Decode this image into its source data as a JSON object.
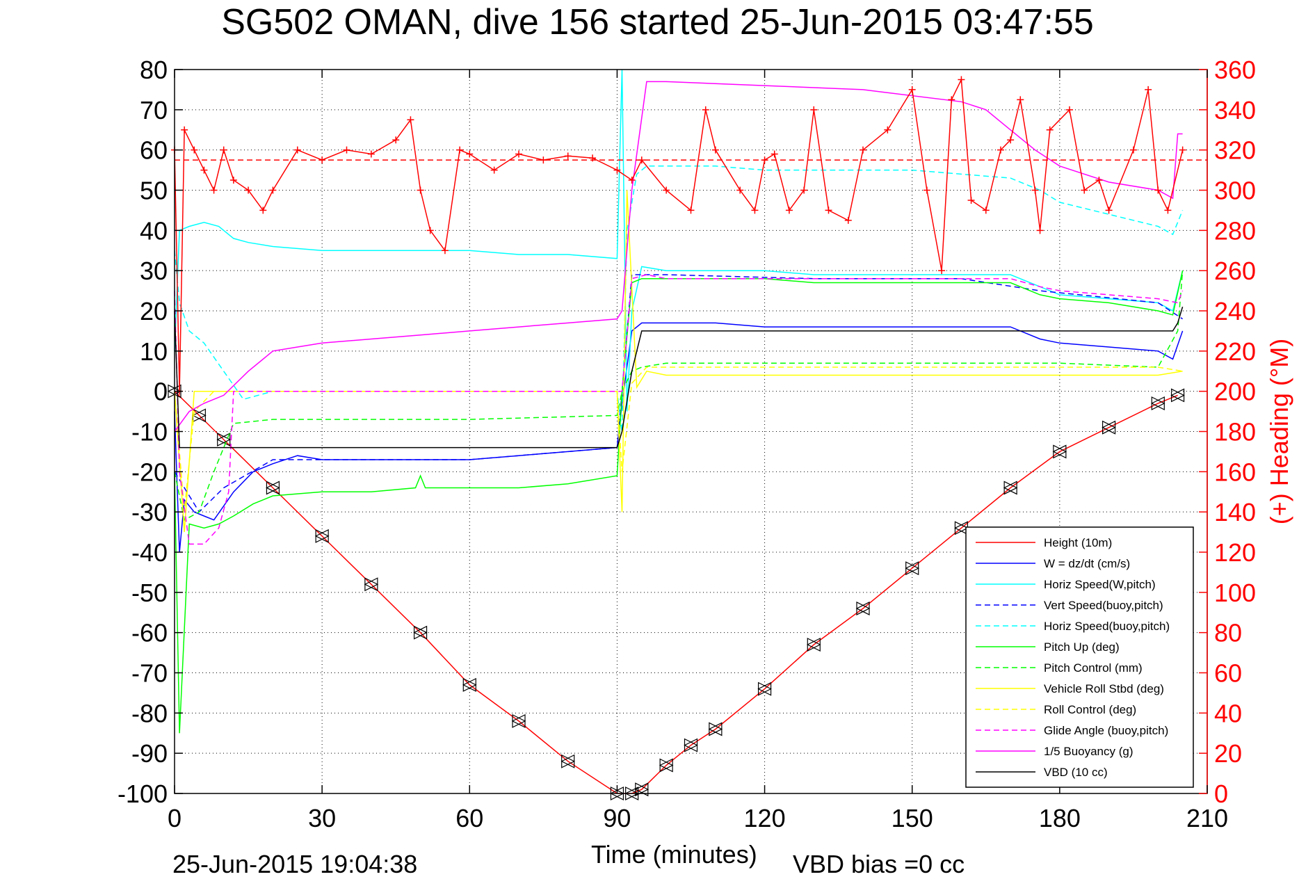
{
  "chart_data": {
    "type": "line",
    "title": "SG502 OMAN, dive 156 started 25-Jun-2015 03:47:55",
    "xlabel": "Time (minutes)",
    "ylabel_right": "(+) Heading (°M)",
    "xlim": [
      0,
      210
    ],
    "ylim_left": [
      -100,
      80
    ],
    "ylim_right": [
      0,
      360
    ],
    "xticks": [
      "0",
      "30",
      "60",
      "90",
      "120",
      "150",
      "180",
      "210"
    ],
    "yticks_left": [
      "80",
      "70",
      "60",
      "50",
      "40",
      "30",
      "20",
      "10",
      "0",
      "-10",
      "-20",
      "-30",
      "-40",
      "-50",
      "-60",
      "-70",
      "-80",
      "-90",
      "-100"
    ],
    "yticks_right": [
      "360",
      "340",
      "320",
      "300",
      "280",
      "260",
      "240",
      "220",
      "200",
      "180",
      "160",
      "140",
      "120",
      "100",
      "80",
      "60",
      "40",
      "20",
      "0"
    ],
    "grid": true,
    "legend_position": "bottom-right",
    "footer_left": "25-Jun-2015 19:04:38",
    "footer_right": "VBD bias =0 cc",
    "colors": {
      "red": "#ff0000",
      "blue": "#0000ff",
      "cyan": "#00ffff",
      "green": "#00ff00",
      "yellow": "#ffff00",
      "magenta": "#ff00ff",
      "black": "#000000"
    },
    "series": [
      {
        "name": "Height (10m)",
        "color": "#ff0000",
        "dash": false,
        "x": [
          0,
          5,
          10,
          20,
          30,
          40,
          50,
          60,
          70,
          80,
          90,
          93,
          95,
          100,
          105,
          110,
          120,
          130,
          140,
          150,
          160,
          170,
          180,
          190,
          200,
          204
        ],
        "y": [
          0,
          -6,
          -12,
          -24,
          -36,
          -48,
          -60,
          -73,
          -82,
          -92,
          -100,
          -100,
          -99,
          -93,
          -88,
          -84,
          -74,
          -63,
          -54,
          -44,
          -34,
          -24,
          -15,
          -9,
          -3,
          -1
        ]
      },
      {
        "name": "W = dz/dt (cm/s)",
        "color": "#0000ff",
        "dash": false,
        "x": [
          0,
          1,
          2,
          4,
          6,
          8,
          12,
          16,
          20,
          25,
          30,
          40,
          50,
          60,
          70,
          80,
          90,
          91,
          93,
          95,
          100,
          110,
          120,
          130,
          140,
          150,
          160,
          170,
          176,
          180,
          190,
          200,
          203,
          205
        ],
        "y": [
          -5,
          -40,
          -27,
          -30,
          -31,
          -32,
          -25,
          -20,
          -18,
          -16,
          -17,
          -17,
          -17,
          -17,
          -16,
          -15,
          -14,
          -3,
          15,
          17,
          17,
          17,
          16,
          16,
          16,
          16,
          16,
          16,
          13,
          12,
          11,
          10,
          8,
          15
        ]
      },
      {
        "name": "Horiz Speed(W,pitch)",
        "color": "#00ffff",
        "dash": false,
        "x": [
          0,
          1,
          3,
          6,
          9,
          12,
          15,
          20,
          30,
          40,
          50,
          60,
          70,
          80,
          90,
          91,
          92,
          93,
          95,
          100,
          110,
          120,
          130,
          140,
          150,
          160,
          170,
          176,
          180,
          190,
          200,
          203,
          205
        ],
        "y": [
          10,
          40,
          41,
          42,
          41,
          38,
          37,
          36,
          35,
          35,
          35,
          35,
          34,
          34,
          33,
          80,
          -5,
          20,
          31,
          30,
          30,
          30,
          29,
          29,
          29,
          29,
          29,
          26,
          24,
          23,
          22,
          20,
          30
        ]
      },
      {
        "name": "Vert Speed(buoy,pitch)",
        "color": "#0000ff",
        "dash": true,
        "x": [
          0,
          5,
          10,
          20,
          40,
          60,
          80,
          90,
          91,
          93,
          100,
          130,
          160,
          176,
          200,
          205
        ],
        "y": [
          -20,
          -30,
          -24,
          -17,
          -17,
          -17,
          -15,
          -14,
          0,
          29,
          29,
          28,
          28,
          25,
          22,
          18
        ]
      },
      {
        "name": "Horiz Speed(buoy,pitch)",
        "color": "#00ffff",
        "dash": true,
        "x": [
          0,
          1,
          3,
          6,
          10,
          14,
          20,
          30,
          60,
          90,
          91,
          92,
          94,
          96,
          100,
          110,
          120,
          130,
          140,
          150,
          160,
          170,
          176,
          180,
          190,
          200,
          203,
          205
        ],
        "y": [
          35,
          22,
          15,
          12,
          5,
          -2,
          0,
          0,
          0,
          0,
          -10,
          40,
          54,
          56,
          56,
          56,
          55,
          55,
          55,
          55,
          54,
          53,
          50,
          47,
          44,
          41,
          39,
          45
        ]
      },
      {
        "name": "Pitch Up (deg)",
        "color": "#00ff00",
        "dash": false,
        "x": [
          0,
          1,
          3,
          6,
          9,
          12,
          16,
          20,
          30,
          40,
          49,
          50,
          51,
          60,
          70,
          80,
          90,
          91,
          93,
          95,
          100,
          110,
          120,
          130,
          140,
          150,
          160,
          170,
          176,
          180,
          190,
          200,
          203,
          205
        ],
        "y": [
          -20,
          -85,
          -33,
          -34,
          -33,
          -31,
          -28,
          -26,
          -25,
          -25,
          -24,
          -21,
          -24,
          -24,
          -24,
          -23,
          -21,
          0,
          27,
          28,
          28,
          28,
          28,
          27,
          27,
          27,
          27,
          27,
          24,
          23,
          22,
          20,
          19,
          30
        ]
      },
      {
        "name": "Pitch Control (mm)",
        "color": "#00ff00",
        "dash": true,
        "x": [
          0,
          2,
          5,
          8,
          12,
          20,
          30,
          60,
          90,
          91,
          93,
          95,
          100,
          120,
          150,
          180,
          200,
          204,
          205
        ],
        "y": [
          -20,
          -32,
          -30,
          -20,
          -8,
          -7,
          -7,
          -7,
          -6,
          0,
          5,
          6,
          7,
          7,
          7,
          7,
          6,
          15,
          30
        ]
      },
      {
        "name": "Vehicle Roll Stbd (deg)",
        "color": "#ffff00",
        "dash": false,
        "x": [
          0,
          2,
          4,
          8,
          12,
          20,
          30,
          40,
          50,
          60,
          70,
          80,
          90,
          91,
          92,
          94,
          96,
          100,
          110,
          120,
          130,
          140,
          150,
          160,
          170,
          180,
          190,
          200,
          205
        ],
        "y": [
          0,
          -35,
          0,
          0,
          0,
          0,
          0,
          0,
          0,
          0,
          0,
          0,
          0,
          -30,
          50,
          1,
          5,
          4,
          4,
          4,
          4,
          4,
          4,
          4,
          4,
          4,
          4,
          4,
          5
        ]
      },
      {
        "name": "Roll Control (deg)",
        "color": "#ffff00",
        "dash": true,
        "x": [
          0,
          2,
          4,
          8,
          12,
          20,
          30,
          60,
          90,
          91,
          93,
          96,
          100,
          120,
          150,
          180,
          200,
          205
        ],
        "y": [
          0,
          -30,
          -5,
          0,
          0,
          0,
          0,
          0,
          0,
          -20,
          2,
          6,
          6,
          6,
          6,
          6,
          6,
          5
        ]
      },
      {
        "name": "Glide Angle (buoy,pitch)",
        "color": "#ff00ff",
        "dash": true,
        "x": [
          0,
          1,
          3,
          6,
          9,
          11,
          12,
          16,
          20,
          30,
          60,
          90,
          91,
          93,
          96,
          100,
          120,
          140,
          160,
          170,
          176,
          180,
          190,
          200,
          204,
          205
        ],
        "y": [
          25,
          -20,
          -38,
          -38,
          -34,
          -25,
          0,
          0,
          0,
          0,
          0,
          0,
          0,
          28,
          29,
          28,
          28,
          28,
          28,
          28,
          26,
          25,
          24,
          23,
          22,
          25
        ]
      },
      {
        "name": "1/5 Buoyancy (g)",
        "color": "#ff00ff",
        "dash": false,
        "x": [
          0,
          3,
          6,
          10,
          15,
          20,
          25,
          30,
          40,
          50,
          60,
          70,
          80,
          90,
          91,
          93,
          96,
          100,
          120,
          140,
          160,
          165,
          170,
          175,
          180,
          190,
          200,
          203,
          204,
          205
        ],
        "y": [
          -10,
          -5,
          -3,
          -1,
          5,
          10,
          11,
          12,
          13,
          14,
          15,
          16,
          17,
          18,
          20,
          50,
          77,
          77,
          76,
          75,
          72,
          70,
          65,
          60,
          56,
          52,
          50,
          48,
          64,
          64
        ]
      },
      {
        "name": "VBD (10 cc)",
        "color": "#000000",
        "dash": false,
        "x": [
          0,
          1,
          2,
          10,
          20,
          30,
          60,
          90,
          91,
          93,
          95,
          100,
          120,
          150,
          180,
          200,
          203,
          204,
          205
        ],
        "y": [
          20,
          -14,
          -14,
          -14,
          -14,
          -14,
          -14,
          -14,
          -10,
          5,
          15,
          15,
          15,
          15,
          15,
          15,
          15,
          17,
          21
        ]
      },
      {
        "name": "Heading",
        "color": "#ff0000",
        "dash": false,
        "axis": "right",
        "x": [
          0,
          1,
          2,
          4,
          6,
          8,
          10,
          12,
          15,
          18,
          20,
          25,
          30,
          35,
          40,
          45,
          48,
          50,
          52,
          55,
          58,
          60,
          65,
          70,
          75,
          80,
          85,
          90,
          93,
          95,
          100,
          105,
          108,
          110,
          115,
          118,
          120,
          122,
          125,
          128,
          130,
          133,
          137,
          140,
          145,
          150,
          153,
          156,
          158,
          160,
          162,
          165,
          168,
          170,
          172,
          175,
          176,
          178,
          182,
          185,
          188,
          190,
          195,
          198,
          200,
          202,
          205
        ],
        "y": [
          320,
          200,
          330,
          320,
          310,
          300,
          320,
          305,
          300,
          290,
          300,
          320,
          315,
          320,
          318,
          325,
          335,
          300,
          280,
          270,
          320,
          318,
          310,
          318,
          315,
          317,
          316,
          310,
          305,
          315,
          300,
          290,
          340,
          320,
          300,
          290,
          315,
          318,
          290,
          300,
          340,
          290,
          285,
          320,
          330,
          350,
          300,
          260,
          345,
          355,
          295,
          290,
          320,
          325,
          345,
          300,
          280,
          330,
          340,
          300,
          305,
          290,
          320,
          350,
          300,
          290,
          320
        ]
      },
      {
        "name": "Heading ref",
        "color": "#ff0000",
        "dash": true,
        "axis": "right",
        "x": [
          0,
          210
        ],
        "y": [
          315,
          315
        ]
      }
    ]
  }
}
